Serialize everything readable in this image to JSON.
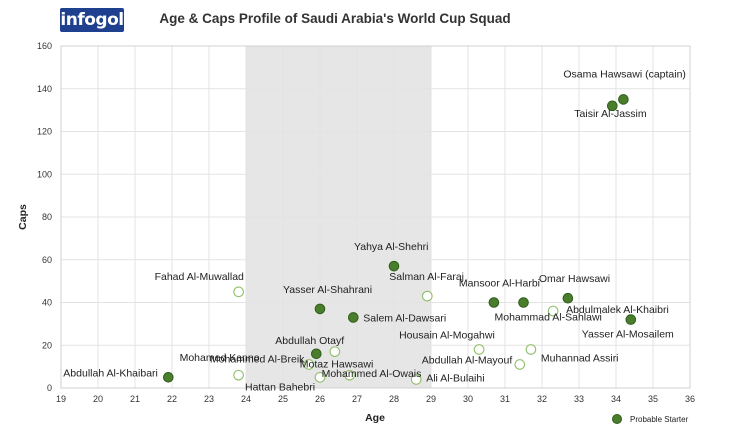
{
  "logo": {
    "text": "infogol"
  },
  "chart_data": {
    "type": "scatter",
    "title": "Age & Caps Profile of Saudi Arabia's World Cup Squad",
    "xlabel": "Age",
    "ylabel": "Caps",
    "xlim": [
      19,
      36
    ],
    "ylim": [
      0,
      160
    ],
    "xticks": [
      "19",
      "20",
      "21",
      "22",
      "23",
      "24",
      "25",
      "26",
      "27",
      "28",
      "29",
      "30",
      "31",
      "32",
      "33",
      "34",
      "35",
      "36"
    ],
    "yticks": [
      "0",
      "20",
      "40",
      "60",
      "80",
      "100",
      "120",
      "140",
      "160"
    ],
    "grid": true,
    "highlight_band": [
      24,
      29
    ],
    "legend": {
      "position": "bottom-right",
      "entries": [
        {
          "name": "Probable Starter",
          "marker": "filled"
        }
      ]
    },
    "colors": {
      "starter": "#4a7d2c",
      "starter_edge": "#2e5e1a",
      "other_edge": "#8fbf6a",
      "band": "#e6e6e6",
      "grid": "#e3e3e3"
    },
    "points": [
      {
        "name": "Osama Hawsawi (captain)",
        "x": 34.2,
        "y": 135,
        "starter": true
      },
      {
        "name": "Taisir Al-Jassim",
        "x": 33.9,
        "y": 132,
        "starter": true
      },
      {
        "name": "Yahya Al-Shehri",
        "x": 28.0,
        "y": 57,
        "starter": true
      },
      {
        "name": "Salman Al-Faraj",
        "x": 28.9,
        "y": 43,
        "starter": false
      },
      {
        "name": "Fahad Al-Muwallad",
        "x": 23.8,
        "y": 45,
        "starter": false
      },
      {
        "name": "Yasser Al-Shahrani",
        "x": 26.0,
        "y": 37,
        "starter": true
      },
      {
        "name": "Salem Al-Dawsari",
        "x": 26.9,
        "y": 33,
        "starter": true
      },
      {
        "name": "Mansoor Al-Harbi",
        "x": 30.7,
        "y": 40,
        "starter": true
      },
      {
        "name": "Omar Hawsawi",
        "x": 32.7,
        "y": 42,
        "starter": true
      },
      {
        "name": "Mohammad Al-Sahlawi",
        "x": 31.5,
        "y": 40,
        "starter": true
      },
      {
        "name": "Abdulmalek Al-Khaibri",
        "x": 32.3,
        "y": 36,
        "starter": false
      },
      {
        "name": "Yasser Al-Mosailem",
        "x": 34.4,
        "y": 32,
        "starter": true
      },
      {
        "name": "Abdullah Otayf",
        "x": 25.9,
        "y": 16,
        "starter": true
      },
      {
        "name": "Motaz Hawsawi",
        "x": 26.4,
        "y": 17,
        "starter": false
      },
      {
        "name": "Mohammed Al-Breik",
        "x": 25.7,
        "y": 11,
        "starter": false
      },
      {
        "name": "Housain Al-Mogahwi",
        "x": 30.3,
        "y": 18,
        "starter": false
      },
      {
        "name": "Muhannad Assiri",
        "x": 31.7,
        "y": 18,
        "starter": false
      },
      {
        "name": "Abdullah Al-Mayouf",
        "x": 31.4,
        "y": 11,
        "starter": false
      },
      {
        "name": "Mohamed Kanno",
        "x": 23.8,
        "y": 6,
        "starter": false
      },
      {
        "name": "Mohammed Al-Owais",
        "x": 26.8,
        "y": 6,
        "starter": false
      },
      {
        "name": "Hattan Bahebri",
        "x": 26.0,
        "y": 5,
        "starter": false
      },
      {
        "name": "Ali Al-Bulaihi",
        "x": 28.6,
        "y": 4,
        "starter": false
      },
      {
        "name": "Abdullah Al-Khaibari",
        "x": 21.9,
        "y": 5,
        "starter": true
      }
    ]
  }
}
